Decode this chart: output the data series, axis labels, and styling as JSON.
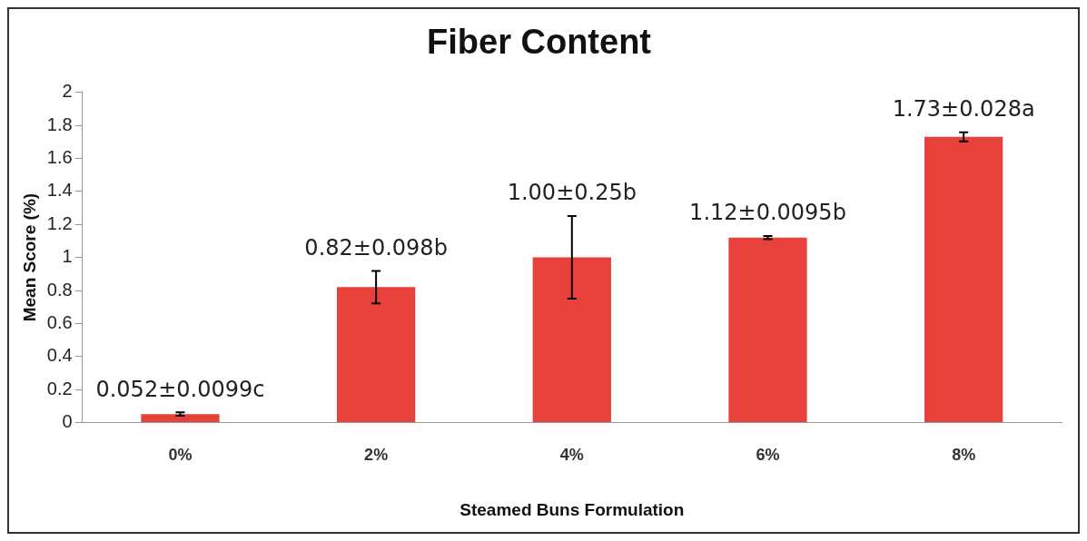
{
  "chart_data": {
    "type": "bar",
    "title": "Fiber Content",
    "xlabel": "Steamed Buns Formulation",
    "ylabel": "Mean Score (%)",
    "categories": [
      "0%",
      "2%",
      "4%",
      "6%",
      "8%"
    ],
    "values": [
      0.052,
      0.82,
      1.0,
      1.12,
      1.73
    ],
    "errors": [
      0.0099,
      0.098,
      0.25,
      0.0095,
      0.028
    ],
    "value_labels": [
      "0.052±0.0099c",
      "0.82±0.098b",
      "1.00±0.25b",
      "1.12±0.0095b",
      "1.73±0.028a"
    ],
    "color": "#e8403a",
    "ylim": [
      0,
      2
    ],
    "yticks": [
      0,
      0.2,
      0.4,
      0.6,
      0.8,
      1,
      1.2,
      1.4,
      1.6,
      1.8,
      2
    ],
    "grid": false,
    "legend": false
  }
}
